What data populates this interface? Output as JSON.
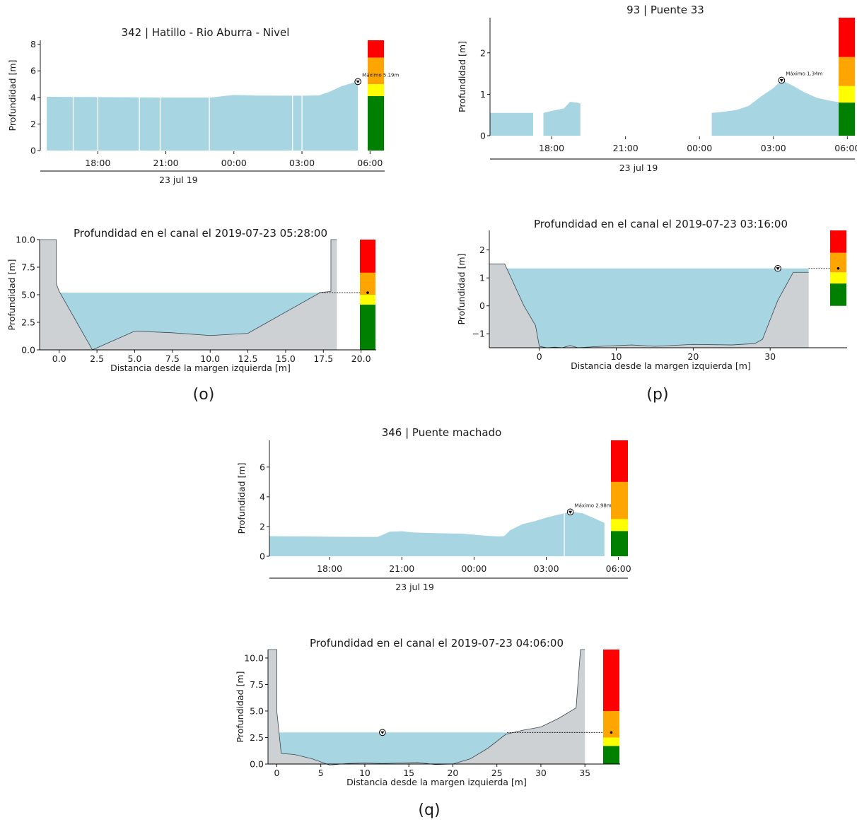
{
  "panel_labels": [
    "(o)",
    "(p)",
    "(q)"
  ],
  "colors": {
    "water": "#a8d5e2",
    "ground": "#cdd1d3",
    "red": "#ff0000",
    "orange": "#ffa500",
    "yellow": "#ffff00",
    "green": "#008000"
  },
  "chart_data": [
    {
      "id": "o_series",
      "type": "area",
      "title": "342 | Hatillo - Rio Aburra - Nivel",
      "ylabel": "Profundidad [m]",
      "xlabel": "",
      "date_label": "23 jul 19",
      "x_ticks": [
        "18:00",
        "21:00",
        "00:00",
        "03:00",
        "06:00"
      ],
      "y_ticks": [
        "0",
        "2",
        "4",
        "6",
        "8"
      ],
      "ylim": [
        0,
        8.3
      ],
      "max_label": "Máximo 5.19m",
      "max_value": 5.19,
      "x": [
        "15:45",
        "16:30",
        "17:30",
        "18:30",
        "19:30",
        "20:30",
        "21:30",
        "22:30",
        "23:00",
        "23:30",
        "00:00",
        "00:30",
        "01:00",
        "02:00",
        "03:00",
        "03:45",
        "04:15",
        "04:45",
        "05:15",
        "05:28"
      ],
      "y": [
        4.05,
        4.04,
        4.03,
        4.02,
        4.01,
        4.0,
        3.99,
        3.99,
        3.99,
        4.1,
        4.18,
        4.16,
        4.14,
        4.13,
        4.13,
        4.15,
        4.45,
        4.85,
        5.1,
        5.19
      ],
      "gaps": [
        "16:55",
        "18:00",
        "19:50",
        "20:45",
        "22:55",
        "02:35",
        "03:00"
      ],
      "alert_bar": [
        {
          "color": "green",
          "from": 0,
          "to": 4.1
        },
        {
          "color": "yellow",
          "from": 4.1,
          "to": 5.0
        },
        {
          "color": "orange",
          "from": 5.0,
          "to": 7.0
        },
        {
          "color": "red",
          "from": 7.0,
          "to": 8.3
        }
      ]
    },
    {
      "id": "p_series",
      "type": "area",
      "title": "93 | Puente 33",
      "ylabel": "Profundidad [m]",
      "xlabel": "",
      "date_label": "23 jul 19",
      "x_ticks": [
        "18:00",
        "21:00",
        "00:00",
        "03:00",
        "06:00"
      ],
      "y_ticks": [
        "0",
        "1",
        "2"
      ],
      "ylim": [
        0,
        2.85
      ],
      "max_label": "Máximo 1.34m",
      "max_value": 1.34,
      "segments": [
        {
          "x": [
            "15:30",
            "17:15"
          ],
          "y": [
            0.55,
            0.55
          ]
        },
        {
          "x": [
            "17:40",
            "18:00",
            "18:30",
            "18:45",
            "19:00",
            "19:10"
          ],
          "y": [
            0.55,
            0.6,
            0.66,
            0.82,
            0.8,
            0.78
          ]
        },
        {
          "x": [
            "00:30",
            "01:00",
            "01:30",
            "02:00",
            "02:30",
            "03:00",
            "03:20",
            "03:45",
            "04:15",
            "04:45",
            "05:15",
            "05:45"
          ],
          "y": [
            0.55,
            0.58,
            0.62,
            0.72,
            0.95,
            1.15,
            1.34,
            1.22,
            1.05,
            0.92,
            0.85,
            0.8
          ]
        }
      ],
      "alert_bar": [
        {
          "color": "green",
          "from": 0,
          "to": 0.8
        },
        {
          "color": "yellow",
          "from": 0.8,
          "to": 1.2
        },
        {
          "color": "orange",
          "from": 1.2,
          "to": 1.9
        },
        {
          "color": "red",
          "from": 1.9,
          "to": 2.85
        }
      ]
    },
    {
      "id": "q_series",
      "type": "area",
      "title": "346 | Puente machado",
      "ylabel": "Profundidad [m]",
      "xlabel": "",
      "date_label": "23 jul 19",
      "x_ticks": [
        "18:00",
        "21:00",
        "00:00",
        "03:00",
        "06:00"
      ],
      "y_ticks": [
        "0",
        "2",
        "4",
        "6"
      ],
      "ylim": [
        0,
        7.8
      ],
      "max_label": "Máximo 2.98m",
      "max_value": 2.98,
      "x": [
        "15:30",
        "17:00",
        "18:30",
        "19:30",
        "20:00",
        "20:30",
        "21:00",
        "21:30",
        "22:30",
        "23:30",
        "00:30",
        "01:00",
        "01:15",
        "01:30",
        "02:00",
        "02:30",
        "03:00",
        "03:30",
        "04:00",
        "04:30",
        "05:00",
        "05:25"
      ],
      "y": [
        1.35,
        1.33,
        1.31,
        1.3,
        1.3,
        1.65,
        1.68,
        1.6,
        1.55,
        1.52,
        1.38,
        1.33,
        1.35,
        1.75,
        2.15,
        2.35,
        2.6,
        2.8,
        2.98,
        2.9,
        2.55,
        2.25
      ],
      "gaps": [
        "03:45"
      ],
      "alert_bar": [
        {
          "color": "green",
          "from": 0,
          "to": 1.7
        },
        {
          "color": "yellow",
          "from": 1.7,
          "to": 2.5
        },
        {
          "color": "orange",
          "from": 2.5,
          "to": 5.0
        },
        {
          "color": "red",
          "from": 5.0,
          "to": 7.8
        }
      ]
    },
    {
      "id": "o_section",
      "type": "area",
      "title": "Profundidad en el canal el 2019-07-23 05:28:00",
      "xlabel": "Distancia desde la margen izquierda [m]",
      "ylabel": "Profundidad [m]",
      "x_ticks": [
        "0.0",
        "2.5",
        "5.0",
        "7.5",
        "10.0",
        "12.5",
        "15.0",
        "17.5",
        "20.0"
      ],
      "y_ticks": [
        "0.0",
        "2.5",
        "5.0",
        "7.5",
        "10.0"
      ],
      "xlim": [
        -1.3,
        21
      ],
      "ylim": [
        0,
        10
      ],
      "water_level": 5.19,
      "profile": {
        "x": [
          -1.3,
          -0.2,
          -0.2,
          0.0,
          2.2,
          5.0,
          7.5,
          10.0,
          12.5,
          17.3,
          18.0,
          18.0,
          18.4
        ],
        "y": [
          10,
          10,
          6,
          5.3,
          0,
          1.7,
          1.55,
          1.3,
          1.5,
          5.2,
          5.3,
          10,
          10
        ]
      },
      "ground_right_edge": 18.4,
      "alert_bar": [
        {
          "color": "green",
          "from": 0,
          "to": 4.1
        },
        {
          "color": "yellow",
          "from": 4.1,
          "to": 5.0
        },
        {
          "color": "orange",
          "from": 5.0,
          "to": 7.0
        },
        {
          "color": "red",
          "from": 7.0,
          "to": 10
        }
      ]
    },
    {
      "id": "p_section",
      "type": "area",
      "title": "Profundidad en el canal el 2019-07-23 03:16:00",
      "xlabel": "Distancia desde la margen izquierda [m]",
      "ylabel": "Profundidad [m]",
      "x_ticks": [
        "0",
        "10",
        "20",
        "30"
      ],
      "y_ticks": [
        "−1",
        "0",
        "1",
        "2"
      ],
      "xlim": [
        -6.5,
        40
      ],
      "ylim": [
        -1.5,
        2.7
      ],
      "water_level": 1.34,
      "profile": {
        "x": [
          -6.5,
          -4.5,
          -2,
          -0.5,
          0,
          1,
          2,
          3,
          4,
          5,
          8,
          12,
          15,
          20,
          25,
          28,
          29,
          31,
          33,
          35
        ],
        "y": [
          1.5,
          1.5,
          0,
          -0.7,
          -1.45,
          -1.5,
          -1.48,
          -1.5,
          -1.42,
          -1.5,
          -1.45,
          -1.4,
          -1.45,
          -1.38,
          -1.4,
          -1.35,
          -1.2,
          0.2,
          1.2,
          1.2
        ]
      },
      "ground_right_edge": 35,
      "alert_bar": [
        {
          "color": "green",
          "from": 0,
          "to": 0.8
        },
        {
          "color": "yellow",
          "from": 0.8,
          "to": 1.2
        },
        {
          "color": "orange",
          "from": 1.2,
          "to": 1.9
        },
        {
          "color": "red",
          "from": 1.9,
          "to": 2.7
        }
      ]
    },
    {
      "id": "q_section",
      "type": "area",
      "title": "Profundidad en el canal el 2019-07-23 04:06:00",
      "xlabel": "Distancia desde la margen izquierda [m]",
      "ylabel": "Profundidad [m]",
      "x_ticks": [
        "0",
        "5",
        "10",
        "15",
        "20",
        "25",
        "30",
        "35"
      ],
      "y_ticks": [
        "0.0",
        "2.5",
        "5.0",
        "7.5",
        "10.0"
      ],
      "xlim": [
        -1,
        39
      ],
      "ylim": [
        0,
        10.8
      ],
      "water_level": 2.98,
      "profile": {
        "x": [
          -1,
          0,
          0,
          0.5,
          2,
          4,
          6,
          8,
          10,
          12,
          14,
          16,
          18,
          20,
          22,
          24,
          26,
          28,
          30,
          32,
          34,
          34.5,
          35
        ],
        "y": [
          10.8,
          10.8,
          5,
          1,
          0.9,
          0.5,
          -0.1,
          0.05,
          0.1,
          0.05,
          0.1,
          0.15,
          -0.05,
          0,
          0.5,
          1.5,
          2.8,
          3.2,
          3.5,
          4.3,
          5.3,
          10.8,
          10.8
        ]
      },
      "ground_right_edge": 35,
      "alert_bar": [
        {
          "color": "green",
          "from": 0,
          "to": 1.7
        },
        {
          "color": "yellow",
          "from": 1.7,
          "to": 2.5
        },
        {
          "color": "orange",
          "from": 2.5,
          "to": 5.0
        },
        {
          "color": "red",
          "from": 5.0,
          "to": 10.8
        }
      ]
    }
  ]
}
